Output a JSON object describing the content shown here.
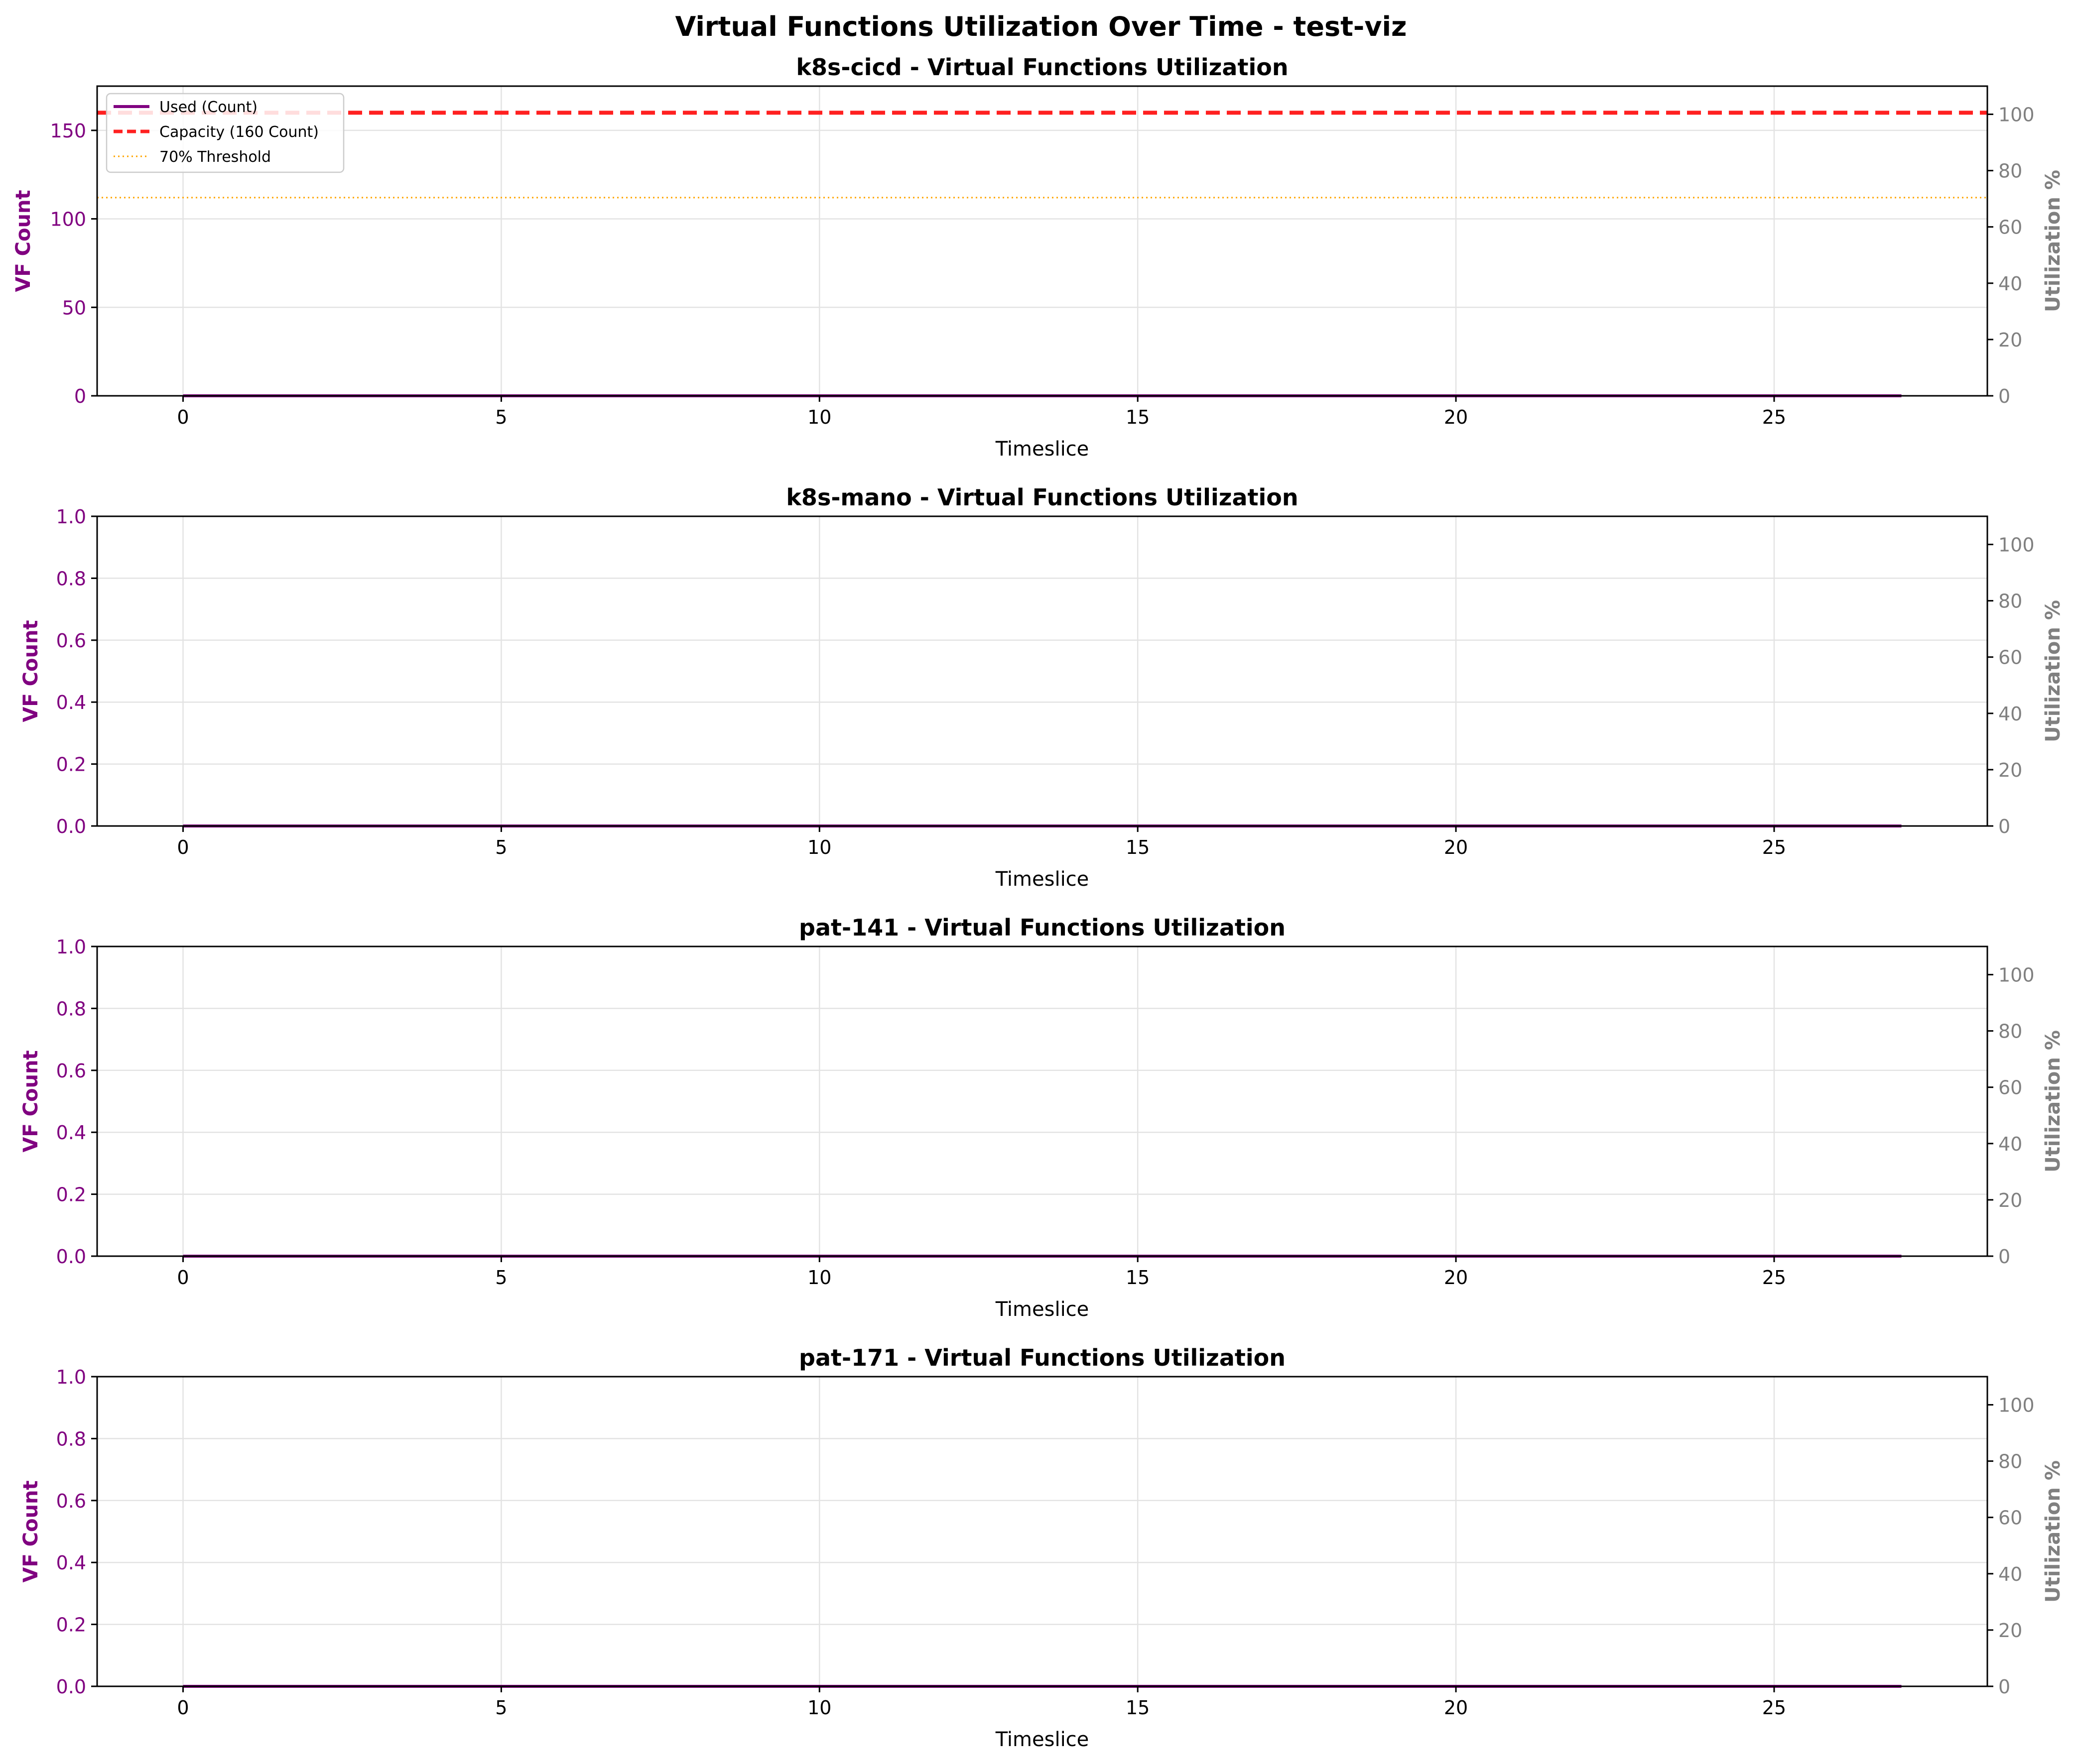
{
  "figure": {
    "title": "Virtual Functions Utilization Over Time - test-viz"
  },
  "colors": {
    "used": "#800080",
    "capacity": "#ff2020",
    "threshold": "#ffa500",
    "left_axis": "#800080",
    "right_axis": "#808080",
    "grid": "#e3e3e3"
  },
  "chart_data": [
    {
      "type": "line",
      "title": "k8s-cicd - Virtual Functions Utilization",
      "xlabel": "Timeslice",
      "ylabel": "VF Count",
      "y2label": "Utilization %",
      "xlim": [
        -1.35,
        28.35
      ],
      "ylim": [
        0,
        175
      ],
      "y2lim": [
        0,
        110
      ],
      "xticks": [
        0,
        5,
        10,
        15,
        20,
        25
      ],
      "yticks": [
        0,
        50,
        100,
        150
      ],
      "y2ticks": [
        0,
        20,
        40,
        60,
        80,
        100
      ],
      "grid": true,
      "legend": {
        "position": "upper-left",
        "entries": [
          "Used (Count)",
          "Capacity (160 Count)",
          "70% Threshold"
        ]
      },
      "series": [
        {
          "name": "Used (Count)",
          "style": "solid",
          "x_start": 0,
          "x_end": 27,
          "values": [
            0,
            0,
            0,
            0,
            0,
            0,
            0,
            0,
            0,
            0,
            0,
            0,
            0,
            0,
            0,
            0,
            0,
            0,
            0,
            0,
            0,
            0,
            0,
            0,
            0,
            0,
            0,
            0
          ]
        }
      ],
      "capacity": 160,
      "threshold": 112
    },
    {
      "type": "line",
      "title": "k8s-mano - Virtual Functions Utilization",
      "xlabel": "Timeslice",
      "ylabel": "VF Count",
      "y2label": "Utilization %",
      "xlim": [
        -1.35,
        28.35
      ],
      "ylim": [
        0,
        1
      ],
      "y2lim": [
        0,
        110
      ],
      "xticks": [
        0,
        5,
        10,
        15,
        20,
        25
      ],
      "yticks": [
        0.0,
        0.2,
        0.4,
        0.6,
        0.8,
        1.0
      ],
      "y2ticks": [
        0,
        20,
        40,
        60,
        80,
        100
      ],
      "grid": true,
      "series": [
        {
          "style": "solid",
          "x_start": 0,
          "x_end": 27,
          "values": [
            0,
            0,
            0,
            0,
            0,
            0,
            0,
            0,
            0,
            0,
            0,
            0,
            0,
            0,
            0,
            0,
            0,
            0,
            0,
            0,
            0,
            0,
            0,
            0,
            0,
            0,
            0,
            0
          ]
        }
      ]
    },
    {
      "type": "line",
      "title": "pat-141 - Virtual Functions Utilization",
      "xlabel": "Timeslice",
      "ylabel": "VF Count",
      "y2label": "Utilization %",
      "xlim": [
        -1.35,
        28.35
      ],
      "ylim": [
        0,
        1
      ],
      "y2lim": [
        0,
        110
      ],
      "xticks": [
        0,
        5,
        10,
        15,
        20,
        25
      ],
      "yticks": [
        0.0,
        0.2,
        0.4,
        0.6,
        0.8,
        1.0
      ],
      "y2ticks": [
        0,
        20,
        40,
        60,
        80,
        100
      ],
      "grid": true,
      "series": [
        {
          "style": "solid",
          "x_start": 0,
          "x_end": 27,
          "values": [
            0,
            0,
            0,
            0,
            0,
            0,
            0,
            0,
            0,
            0,
            0,
            0,
            0,
            0,
            0,
            0,
            0,
            0,
            0,
            0,
            0,
            0,
            0,
            0,
            0,
            0,
            0,
            0
          ]
        }
      ]
    },
    {
      "type": "line",
      "title": "pat-171 - Virtual Functions Utilization",
      "xlabel": "Timeslice",
      "ylabel": "VF Count",
      "y2label": "Utilization %",
      "xlim": [
        -1.35,
        28.35
      ],
      "ylim": [
        0,
        1
      ],
      "y2lim": [
        0,
        110
      ],
      "xticks": [
        0,
        5,
        10,
        15,
        20,
        25
      ],
      "yticks": [
        0.0,
        0.2,
        0.4,
        0.6,
        0.8,
        1.0
      ],
      "y2ticks": [
        0,
        20,
        40,
        60,
        80,
        100
      ],
      "grid": true,
      "series": [
        {
          "style": "solid",
          "x_start": 0,
          "x_end": 27,
          "values": [
            0,
            0,
            0,
            0,
            0,
            0,
            0,
            0,
            0,
            0,
            0,
            0,
            0,
            0,
            0,
            0,
            0,
            0,
            0,
            0,
            0,
            0,
            0,
            0,
            0,
            0,
            0,
            0
          ]
        }
      ]
    }
  ]
}
